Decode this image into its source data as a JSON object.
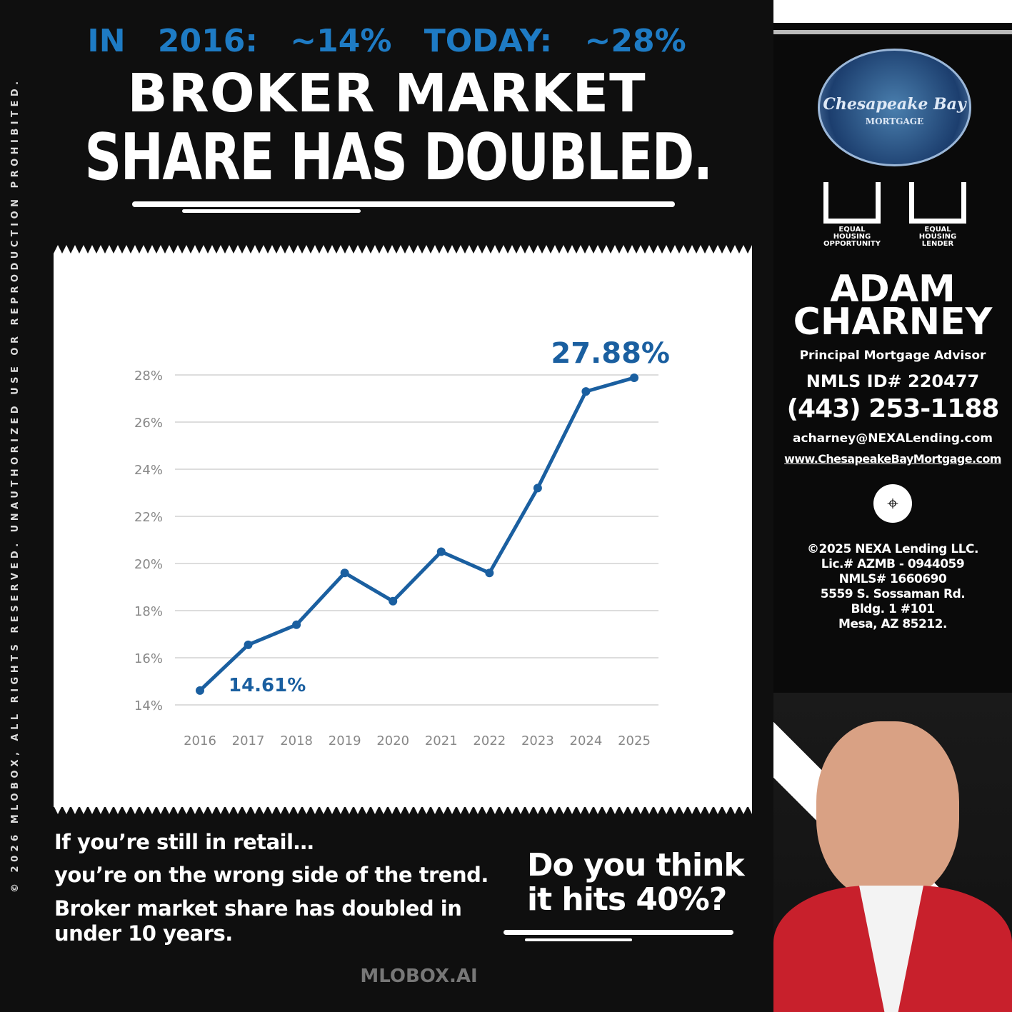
{
  "header": {
    "top": "IN 2016: ~14%    TODAY: ~28%",
    "line1": "BROKER MARKET",
    "line2": "SHARE HAS DOUBLED."
  },
  "copyright_vertical": "© 2026 MLOBOX, ALL RIGHTS RESERVED. UNAUTHORIZED USE OR REPRODUCTION PROHIBITED.",
  "chart_data": {
    "type": "line",
    "categories": [
      "2016",
      "2017",
      "2018",
      "2019",
      "2020",
      "2021",
      "2022",
      "2023",
      "2024",
      "2025"
    ],
    "values": [
      14.61,
      16.55,
      17.4,
      19.6,
      18.4,
      20.5,
      19.6,
      23.2,
      27.3,
      27.88
    ],
    "ylim": [
      14,
      28
    ],
    "yticks": [
      "14%",
      "16%",
      "18%",
      "20%",
      "22%",
      "24%",
      "26%",
      "28%"
    ],
    "annotations": [
      "14.61%",
      "27.88%"
    ],
    "grid": true,
    "line_color": "#1a5fa0"
  },
  "bottom": {
    "l1": "If you’re still in retail…",
    "l2": "you’re on the wrong side of the trend.",
    "l3": "Broker market share has doubled in",
    "l4": "under 10 years.",
    "question1": "Do you think",
    "question2": "it hits 40%?",
    "brand": "MLOBOX.AI"
  },
  "sidebar": {
    "logo_text": "Chesapeake Bay",
    "logo_sub": "MORTGAGE",
    "eho1": "EQUAL HOUSING OPPORTUNITY",
    "eho2": "EQUAL HOUSING LENDER",
    "name1": "ADAM",
    "name2": "CHARNEY",
    "title": "Principal Mortgage Advisor",
    "nmls": "NMLS ID# 220477",
    "phone": "(443) 253-1188",
    "email": "acharney@NEXALending.com",
    "website": "www.ChesapeakeBayMortgage.com",
    "legal": [
      "©2025 NEXA Lending LLC.",
      "Lic.# AZMB - 0944059",
      "NMLS# 1660690",
      "5559 S. Sossaman Rd.",
      "Bldg. 1 #101",
      "Mesa, AZ 85212."
    ]
  }
}
